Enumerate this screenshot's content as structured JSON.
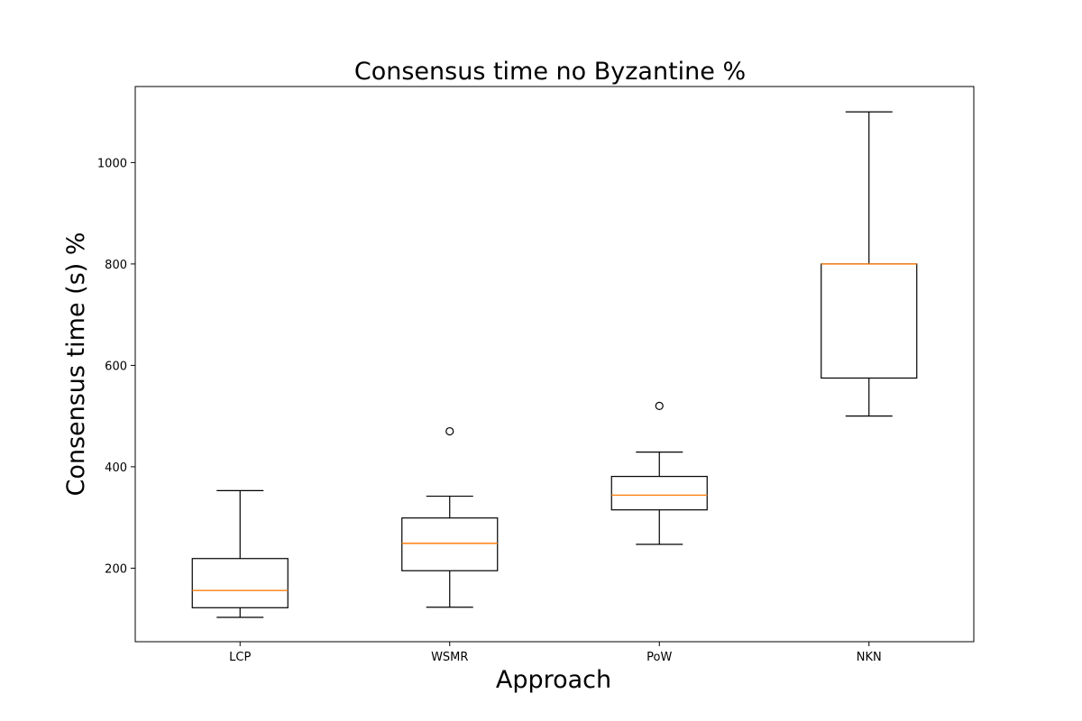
{
  "chart_data": {
    "type": "box",
    "title": "Consensus time no Byzantine %",
    "xlabel": "Approach",
    "ylabel": "Consensus time (s) %",
    "ylim": [
      55,
      1150
    ],
    "yticks": [
      200,
      400,
      600,
      800,
      1000
    ],
    "grid": false,
    "categories": [
      "LCP",
      "WSMR",
      "PoW",
      "NKN"
    ],
    "boxes": [
      {
        "category": "LCP",
        "whisker_low": 103,
        "q1": 122,
        "median": 156,
        "q3": 219,
        "whisker_high": 353,
        "outliers": []
      },
      {
        "category": "WSMR",
        "whisker_low": 123,
        "q1": 195,
        "median": 249,
        "q3": 299,
        "whisker_high": 342,
        "outliers": [
          470
        ]
      },
      {
        "category": "PoW",
        "whisker_low": 247,
        "q1": 315,
        "median": 344,
        "q3": 381,
        "whisker_high": 429,
        "outliers": [
          520
        ]
      },
      {
        "category": "NKN",
        "whisker_low": 500,
        "q1": 575,
        "median": 800,
        "q3": 800,
        "whisker_high": 1100,
        "outliers": []
      }
    ],
    "colors": {
      "box": "#000000",
      "median": "#ff7f0e"
    }
  }
}
